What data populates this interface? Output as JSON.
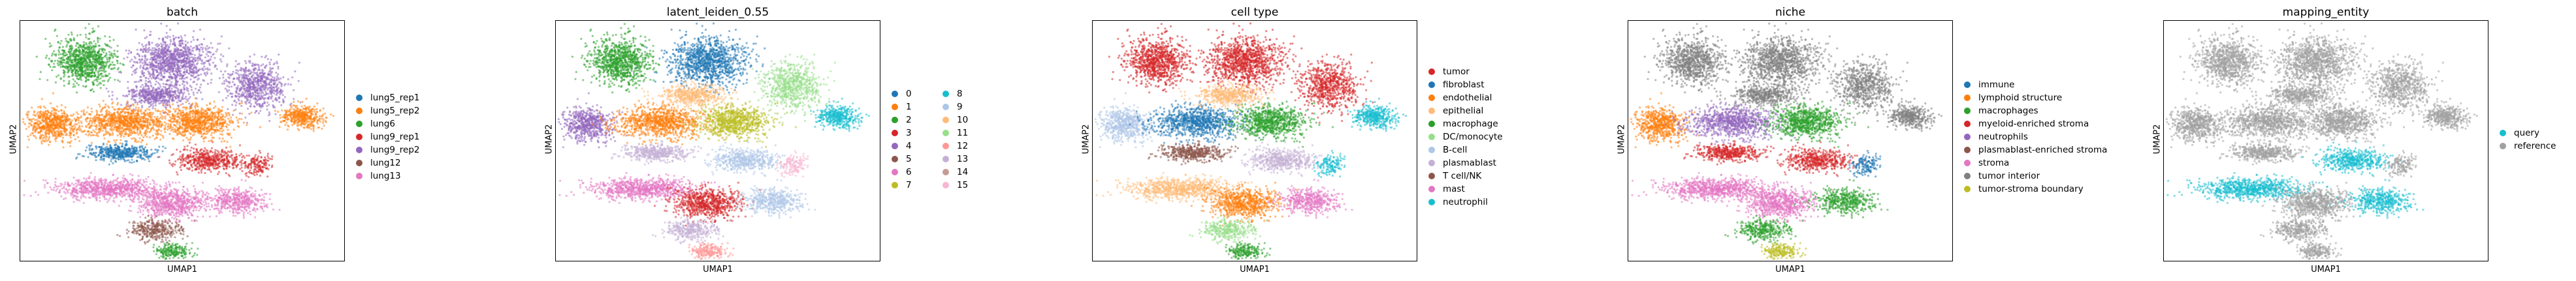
{
  "chart_data": [
    {
      "type": "scatter",
      "title": "batch",
      "xlabel": "UMAP1",
      "ylabel": "UMAP2",
      "legend": {
        "placement": "right",
        "columns": 1,
        "entries": [
          {
            "name": "lung5_rep1",
            "color": "#1f77b4"
          },
          {
            "name": "lung5_rep2",
            "color": "#ff7f0e"
          },
          {
            "name": "lung6",
            "color": "#2ca02c"
          },
          {
            "name": "lung9_rep1",
            "color": "#d62728"
          },
          {
            "name": "lung9_rep2",
            "color": "#9467bd"
          },
          {
            "name": "lung12",
            "color": "#8c564b"
          },
          {
            "name": "lung13",
            "color": "#e377c2"
          }
        ]
      }
    },
    {
      "type": "scatter",
      "title": "latent_leiden_0.55",
      "xlabel": "UMAP1",
      "ylabel": "UMAP2",
      "legend": {
        "placement": "right",
        "columns": 2,
        "entries": [
          {
            "name": "0",
            "color": "#1f77b4"
          },
          {
            "name": "1",
            "color": "#ff7f0e"
          },
          {
            "name": "2",
            "color": "#2ca02c"
          },
          {
            "name": "3",
            "color": "#d62728"
          },
          {
            "name": "4",
            "color": "#9467bd"
          },
          {
            "name": "5",
            "color": "#8c564b"
          },
          {
            "name": "6",
            "color": "#e377c2"
          },
          {
            "name": "7",
            "color": "#bcbd22"
          },
          {
            "name": "8",
            "color": "#17becf"
          },
          {
            "name": "9",
            "color": "#aec7e8"
          },
          {
            "name": "10",
            "color": "#ffbb78"
          },
          {
            "name": "11",
            "color": "#98df8a"
          },
          {
            "name": "12",
            "color": "#ff9896"
          },
          {
            "name": "13",
            "color": "#c5b0d5"
          },
          {
            "name": "14",
            "color": "#c49c94"
          },
          {
            "name": "15",
            "color": "#f7b6d2"
          }
        ]
      }
    },
    {
      "type": "scatter",
      "title": "cell type",
      "xlabel": "UMAP1",
      "ylabel": "UMAP2",
      "legend": {
        "placement": "right",
        "columns": 1,
        "entries": [
          {
            "name": "tumor",
            "color": "#d62728"
          },
          {
            "name": "fibroblast",
            "color": "#1f77b4"
          },
          {
            "name": "endothelial",
            "color": "#ff7f0e"
          },
          {
            "name": "epithelial",
            "color": "#ffbb78"
          },
          {
            "name": "macrophage",
            "color": "#2ca02c"
          },
          {
            "name": "DC/monocyte",
            "color": "#98df8a"
          },
          {
            "name": "B-cell",
            "color": "#aec7e8"
          },
          {
            "name": "plasmablast",
            "color": "#c5b0d5"
          },
          {
            "name": "T cell/NK",
            "color": "#8c564b"
          },
          {
            "name": "mast",
            "color": "#e377c2"
          },
          {
            "name": "neutrophil",
            "color": "#17becf"
          }
        ]
      }
    },
    {
      "type": "scatter",
      "title": "niche",
      "xlabel": "UMAP1",
      "ylabel": "UMAP2",
      "legend": {
        "placement": "right",
        "columns": 1,
        "entries": [
          {
            "name": "immune",
            "color": "#1f77b4"
          },
          {
            "name": "lymphoid structure",
            "color": "#ff7f0e"
          },
          {
            "name": "macrophages",
            "color": "#2ca02c"
          },
          {
            "name": "myeloid-enriched stroma",
            "color": "#d62728"
          },
          {
            "name": "neutrophils",
            "color": "#9467bd"
          },
          {
            "name": "plasmablast-enriched stroma",
            "color": "#8c564b"
          },
          {
            "name": "stroma",
            "color": "#e377c2"
          },
          {
            "name": "tumor interior",
            "color": "#7f7f7f"
          },
          {
            "name": "tumor-stroma boundary",
            "color": "#bcbd22"
          }
        ]
      }
    },
    {
      "type": "scatter",
      "title": "mapping_entity",
      "xlabel": "UMAP1",
      "ylabel": "UMAP2",
      "legend": {
        "placement": "right",
        "columns": 1,
        "entries": [
          {
            "name": "query",
            "color": "#17becf"
          },
          {
            "name": "reference",
            "color": "#a0a0a0"
          }
        ]
      }
    }
  ]
}
